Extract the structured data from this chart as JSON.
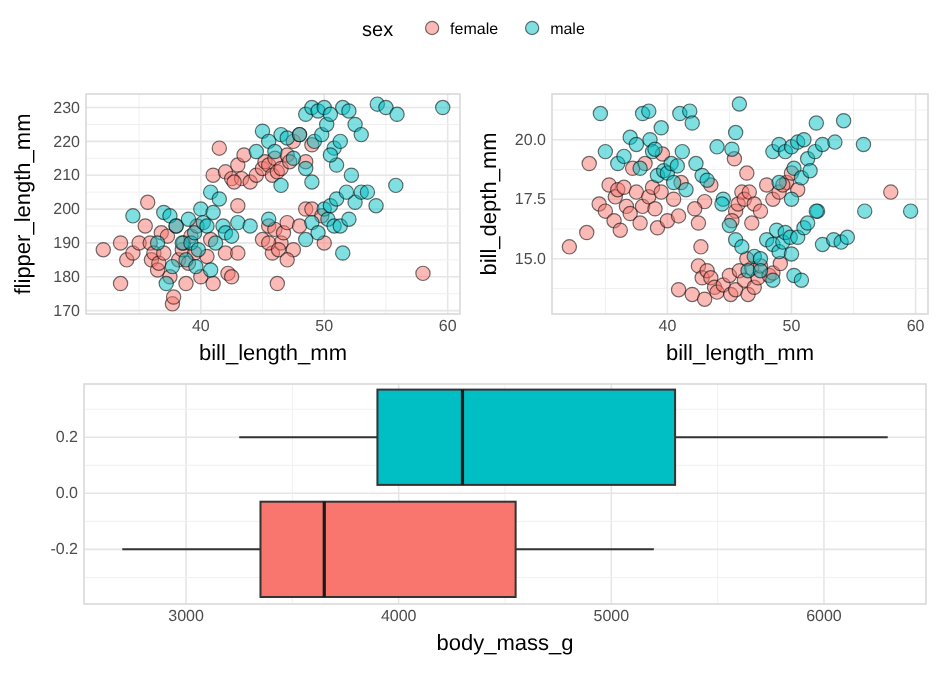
{
  "chart_data": [
    {
      "type": "scatter",
      "xlabel": "bill_length_mm",
      "ylabel": "flipper_length_mm",
      "xlim": [
        30.7,
        61
      ],
      "ylim": [
        169,
        234
      ],
      "xticks": [
        40,
        50,
        60
      ],
      "yticks": [
        170,
        180,
        190,
        200,
        210,
        220,
        230
      ],
      "grid": true,
      "legend": "top",
      "legend_title": "sex",
      "marker": "circle",
      "series": [
        {
          "name": "female",
          "color": "#f8766d",
          "x": [
            32.1,
            33.5,
            33.5,
            34,
            34.5,
            35,
            35.5,
            35.7,
            35.9,
            36,
            36.2,
            36.5,
            36.6,
            36.8,
            37,
            37.3,
            37.5,
            37.7,
            37.8,
            38,
            38.2,
            38.5,
            38.6,
            38.8,
            39,
            39.2,
            39.5,
            39.7,
            40,
            40.5,
            40.8,
            41,
            42,
            42.2,
            42.5,
            43,
            41,
            42,
            42.5,
            43,
            43.3,
            43.5,
            44,
            44.5,
            45,
            45.2,
            45.5,
            45.8,
            46,
            46.2,
            46.5,
            47,
            47.2,
            47.5,
            48,
            48.5,
            49,
            42.7,
            41.5,
            45,
            45.5,
            45.8,
            46,
            46.2,
            46.5,
            46.7,
            47,
            47.5,
            48,
            48.5,
            49,
            49.8,
            50,
            58,
            43,
            45.5,
            46.3,
            47
          ],
          "values": [
            188,
            178,
            190,
            185,
            187,
            190,
            195,
            202,
            190,
            185,
            187,
            182,
            184,
            193,
            187,
            192,
            180,
            172,
            174,
            195,
            185,
            188,
            190,
            178,
            184,
            192,
            187,
            195,
            180,
            186,
            191,
            178,
            187,
            181,
            180,
            201,
            210,
            211,
            209,
            213,
            209,
            216,
            208,
            210,
            212,
            214,
            213,
            210,
            215,
            211,
            212,
            216,
            214,
            220,
            222,
            214,
            219,
            208,
            218,
            191,
            195,
            187,
            194,
            178,
            190,
            193,
            196,
            188,
            195,
            200,
            200,
            198,
            190,
            181,
            187,
            190,
            188,
            185
          ]
        },
        {
          "name": "male",
          "color": "#00bfc4",
          "x": [
            34.5,
            36.5,
            37,
            37.5,
            37.7,
            38,
            38.5,
            38.8,
            39,
            39.2,
            39.5,
            39.8,
            40,
            40.2,
            40.5,
            40.8,
            41,
            41.2,
            41.5,
            41.8,
            42,
            42.5,
            43,
            44,
            39.6,
            40.8,
            37.2,
            45.5,
            44.5,
            45,
            45.5,
            46,
            46.5,
            47,
            47.5,
            48,
            48.5,
            49,
            49.2,
            49.5,
            49.8,
            50,
            50.2,
            50.5,
            50.8,
            51,
            51.3,
            51.5,
            52,
            52.5,
            53,
            54.3,
            55,
            55.9,
            59.6,
            49,
            48.5,
            50.5,
            46.5,
            49,
            49.5,
            50,
            50.3,
            50.5,
            50.8,
            51,
            51.3,
            51.5,
            52,
            52.5,
            53,
            53.5,
            54.2,
            55.8,
            48.5,
            52.2,
            51.8
          ],
          "values": [
            198,
            190,
            199,
            198,
            183,
            195,
            190,
            185,
            197,
            190,
            193,
            188,
            200,
            196,
            195,
            205,
            199,
            190,
            203,
            195,
            193,
            192,
            196,
            195,
            183,
            182,
            178,
            197,
            217,
            223,
            220,
            217,
            222,
            221,
            215,
            222,
            228,
            230,
            220,
            229,
            222,
            230,
            225,
            228,
            218,
            213,
            220,
            230,
            229,
            225,
            222,
            231,
            230,
            228,
            230,
            208,
            212,
            216,
            207,
            196,
            193,
            200,
            197,
            201,
            195,
            203,
            195,
            187,
            197,
            202,
            205,
            205,
            201,
            207,
            191,
            210,
            205
          ]
        }
      ]
    },
    {
      "type": "scatter",
      "xlabel": "bill_length_mm",
      "ylabel": "bill_depth_mm",
      "xlim": [
        30.7,
        61
      ],
      "ylim": [
        12.68,
        21.92
      ],
      "xticks": [
        40,
        50,
        60
      ],
      "yticks": [
        {
          "value": 15,
          "label": "15.0"
        },
        17.5,
        {
          "value": 20,
          "label": "20.0"
        }
      ],
      "grid": true,
      "marker": "circle",
      "series": [
        {
          "color": "#f8766d",
          "x": [
            32.1,
            33.5,
            33.7,
            34.5,
            35,
            35.3,
            35.7,
            35.8,
            36,
            36.2,
            36.5,
            36.7,
            37,
            37.2,
            37.5,
            37.8,
            38,
            38.2,
            38.5,
            38.8,
            39,
            39.2,
            39.5,
            39.6,
            40,
            40.5,
            40.9,
            41.1,
            42.5,
            43,
            42.2,
            40.9,
            42,
            42.5,
            42.8,
            43,
            43.2,
            43.5,
            43.8,
            44,
            44.5,
            45,
            45.1,
            45.5,
            45.8,
            46.2,
            46.5,
            46.8,
            47,
            47.3,
            47.5,
            48.2,
            48.5,
            49.1,
            46.4,
            42.7,
            45.5,
            45.7,
            46,
            46.2,
            46.4,
            46.6,
            46.8,
            47,
            47.5,
            48,
            48.5,
            49,
            49.6,
            50,
            50.5,
            58,
            45.2,
            45.4,
            43.5,
            49.3
          ],
          "values": [
            15.5,
            16.1,
            19,
            17.3,
            17,
            18.1,
            16.6,
            17.6,
            17.9,
            16.2,
            18,
            17.2,
            16.9,
            18.8,
            17.8,
            16.5,
            17.2,
            19,
            17.6,
            18,
            17.1,
            16.3,
            17.8,
            19.4,
            16.6,
            17.5,
            16.8,
            18.2,
            16.5,
            17.4,
            17.1,
            13.7,
            13.5,
            14.7,
            14.2,
            13.3,
            14.5,
            14.2,
            13.8,
            13.6,
            13.9,
            14.3,
            13.5,
            13.7,
            14.5,
            14.1,
            13.5,
            14.6,
            13.8,
            14.2,
            14.7,
            14.3,
            14.4,
            14.8,
            15,
            15.5,
            17,
            17.3,
            17.8,
            17.5,
            18.6,
            17.8,
            16.5,
            17.3,
            17,
            18.1,
            17.5,
            17.8,
            18.2,
            18.6,
            17.9,
            17.8,
            16.6,
            19.2,
            18.1,
            18.1
          ]
        },
        {
          "color": "#00bfc4",
          "x": [
            34.6,
            35,
            36,
            36.5,
            37,
            37.5,
            37.8,
            38,
            38.5,
            38.6,
            38.8,
            39,
            39.2,
            39.5,
            39.7,
            40,
            40.3,
            40.5,
            40.8,
            41,
            41.2,
            41.5,
            41.8,
            42,
            42.3,
            42.8,
            43.2,
            44,
            44.5,
            45.8,
            45.5,
            45.2,
            44.4,
            45,
            45.5,
            46,
            46.5,
            47,
            47.5,
            48,
            48.5,
            48.8,
            49,
            49.3,
            49.5,
            49.9,
            50,
            50.2,
            50.5,
            50.8,
            51,
            51.3,
            52.1,
            52.5,
            53.4,
            54,
            54.5,
            55.9,
            59.6,
            48.5,
            47.5,
            48.5,
            49,
            49.5,
            50,
            50.2,
            50.5,
            50.8,
            51,
            51.3,
            51.5,
            51.9,
            52,
            52.5,
            53.5,
            54.2,
            55.8,
            49,
            50,
            52
          ],
          "values": [
            21.1,
            19.5,
            19,
            19.3,
            20.1,
            19.8,
            18.8,
            21.1,
            21.2,
            20,
            19.5,
            19.6,
            18.5,
            20.5,
            18.7,
            18.6,
            19,
            18.2,
            18.9,
            21.1,
            19.5,
            17.9,
            21.2,
            20.7,
            19,
            18.5,
            18.3,
            19.7,
            17.5,
            21.5,
            20.3,
            19.6,
            17.3,
            16.4,
            15.8,
            15.5,
            14.5,
            15.1,
            15,
            15.8,
            15.6,
            16.2,
            15.3,
            15.7,
            16.1,
            15.9,
            15.2,
            14.3,
            15.9,
            14.1,
            16.3,
            16.5,
            17,
            15.6,
            15.8,
            15.7,
            15.9,
            17,
            17,
            14.1,
            14.5,
            19.5,
            19.8,
            19.5,
            19.7,
            18.8,
            19.9,
            18.4,
            20,
            19.2,
            18.7,
            19.5,
            20.7,
            19.8,
            19.9,
            20.8,
            19.8,
            18.2,
            17.5,
            17
          ]
        }
      ]
    },
    {
      "type": "box",
      "orientation": "horizontal",
      "xlabel": "body_mass_g",
      "xlim": [
        2520,
        6480
      ],
      "xticks": [
        3000,
        4000,
        5000,
        6000
      ],
      "ylim": [
        -0.395,
        0.39
      ],
      "yticks": [
        {
          "value": -0.2,
          "label": "-0.2"
        },
        {
          "value": 0,
          "label": "0.0"
        },
        {
          "value": 0.2,
          "label": "0.2"
        }
      ],
      "grid": true,
      "series": [
        {
          "color": "#f8766d",
          "x": [
            -0.2
          ],
          "boxes": [
            {
              "low": 2700,
              "q1": 3350,
              "median": 3650,
              "q3": 4550,
              "high": 5200
            }
          ]
        },
        {
          "color": "#00bfc4",
          "x": [
            0.2
          ],
          "boxes": [
            {
              "low": 3250,
              "q1": 3900,
              "median": 4300,
              "q3": 5300,
              "high": 6300
            }
          ]
        }
      ]
    }
  ]
}
